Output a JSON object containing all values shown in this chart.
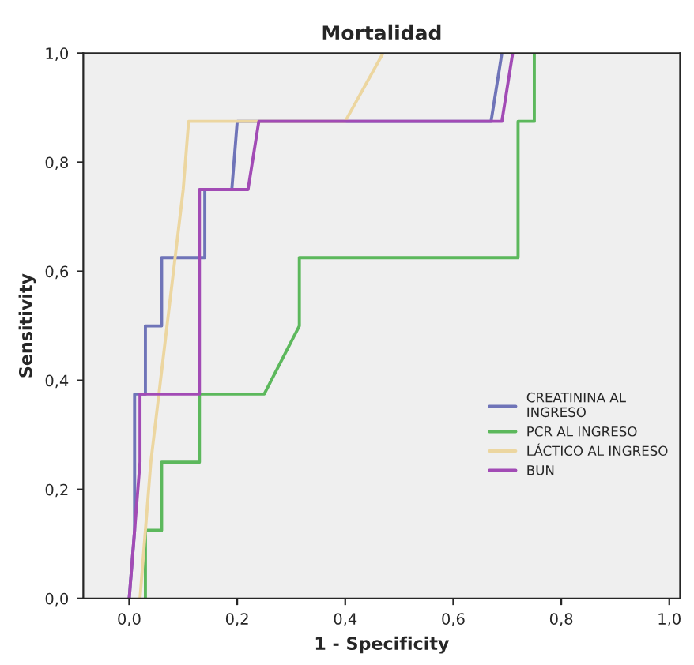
{
  "chart_data": {
    "type": "step",
    "title": "Mortalidad",
    "xlabel": "1 - Specificity",
    "ylabel": "Sensitivity",
    "xlim": [
      -0.085,
      1.02
    ],
    "ylim": [
      0,
      1.0
    ],
    "xticks": [
      {
        "value": 0,
        "label": "0,0"
      },
      {
        "value": 0.2,
        "label": "0,2"
      },
      {
        "value": 0.4,
        "label": "0,4"
      },
      {
        "value": 0.6,
        "label": "0,6"
      },
      {
        "value": 0.8,
        "label": "0,8"
      },
      {
        "value": 1.0,
        "label": "1,0"
      }
    ],
    "yticks": [
      {
        "value": 0,
        "label": "0,0"
      },
      {
        "value": 0.2,
        "label": "0,2"
      },
      {
        "value": 0.4,
        "label": "0,4"
      },
      {
        "value": 0.6,
        "label": "0,6"
      },
      {
        "value": 0.8,
        "label": "0,8"
      },
      {
        "value": 1.0,
        "label": "1,0"
      }
    ],
    "grid": false,
    "legend": "right",
    "line_style": "solid",
    "marker": "none",
    "series": [
      {
        "name": "CREATININA AL\nINGRESO",
        "color": "#6f74b8",
        "x": [
          0,
          0.01,
          0.01,
          0.03,
          0.03,
          0.06,
          0.06,
          0.14,
          0.14,
          0.19,
          0.2,
          0.67,
          0.69
        ],
        "values": [
          0,
          0.125,
          0.375,
          0.375,
          0.5,
          0.5,
          0.625,
          0.625,
          0.75,
          0.75,
          0.875,
          0.875,
          1.0
        ]
      },
      {
        "name": "PCR AL INGRESO",
        "color": "#5cb85c",
        "x": [
          0.03,
          0.03,
          0.06,
          0.06,
          0.13,
          0.13,
          0.25,
          0.315,
          0.315,
          0.72,
          0.72,
          0.75,
          0.75
        ],
        "values": [
          0,
          0.125,
          0.125,
          0.25,
          0.25,
          0.375,
          0.375,
          0.5,
          0.625,
          0.625,
          0.875,
          0.875,
          1.0
        ]
      },
      {
        "name": "LÁCTICO AL INGRESO",
        "color": "#ecd6a0",
        "x": [
          0.02,
          0.04,
          0.07,
          0.1,
          0.11,
          0.4,
          0.47
        ],
        "values": [
          0,
          0.25,
          0.5,
          0.75,
          0.875,
          0.875,
          1.0
        ]
      },
      {
        "name": "BUN",
        "color": "#a24bb5",
        "x": [
          0,
          0.01,
          0.02,
          0.02,
          0.13,
          0.13,
          0.22,
          0.24,
          0.69,
          0.71
        ],
        "values": [
          0,
          0.125,
          0.25,
          0.375,
          0.375,
          0.75,
          0.75,
          0.875,
          0.875,
          1.0
        ]
      }
    ]
  }
}
